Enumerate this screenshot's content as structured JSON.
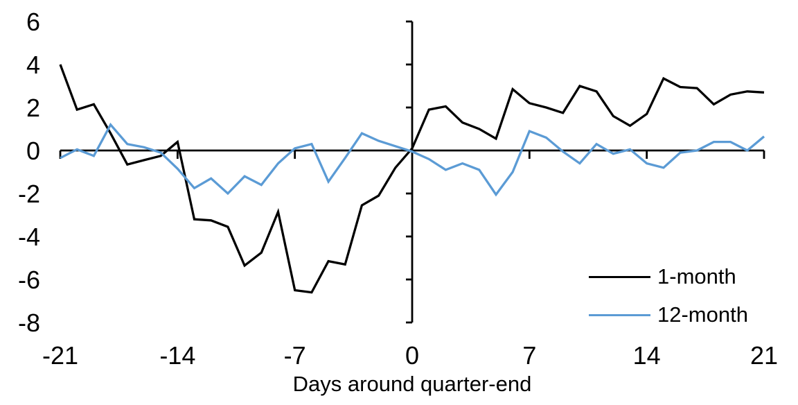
{
  "chart_data": {
    "type": "line",
    "title": "",
    "xlabel": "Days around quarter-end",
    "ylabel": "",
    "x": [
      -21,
      -20,
      -19,
      -18,
      -17,
      -16,
      -15,
      -14,
      -13,
      -12,
      -11,
      -10,
      -9,
      -8,
      -7,
      -6,
      -5,
      -4,
      -3,
      -2,
      -1,
      0,
      1,
      2,
      3,
      4,
      5,
      6,
      7,
      8,
      9,
      10,
      11,
      12,
      13,
      14,
      15,
      16,
      17,
      18,
      19,
      20,
      21
    ],
    "series": [
      {
        "name": "1-month",
        "color": "#000000",
        "values": [
          4.0,
          1.9,
          2.15,
          0.8,
          -0.65,
          -0.45,
          -0.25,
          0.4,
          -3.2,
          -3.25,
          -3.55,
          -5.35,
          -4.75,
          -2.85,
          -6.5,
          -6.6,
          -5.15,
          -5.3,
          -2.55,
          -2.1,
          -0.8,
          0.1,
          1.9,
          2.05,
          1.3,
          1.0,
          0.55,
          2.85,
          2.2,
          2.0,
          1.75,
          3.0,
          2.75,
          1.6,
          1.15,
          1.7,
          3.35,
          2.95,
          2.9,
          2.15,
          2.6,
          2.75,
          2.7
        ]
      },
      {
        "name": "12-month",
        "color": "#5B9BD5",
        "values": [
          -0.35,
          0.05,
          -0.25,
          1.2,
          0.3,
          0.15,
          -0.1,
          -0.85,
          -1.75,
          -1.3,
          -2.0,
          -1.2,
          -1.6,
          -0.6,
          0.1,
          0.3,
          -1.45,
          -0.35,
          0.8,
          0.45,
          0.2,
          -0.05,
          -0.4,
          -0.9,
          -0.6,
          -0.9,
          -2.05,
          -1.0,
          0.9,
          0.6,
          -0.05,
          -0.6,
          0.3,
          -0.15,
          0.05,
          -0.6,
          -0.8,
          -0.1,
          0.0,
          0.4,
          0.4,
          0.0,
          0.65
        ]
      }
    ],
    "x_ticks": [
      -21,
      -14,
      -7,
      0,
      7,
      14,
      21
    ],
    "y_ticks": [
      6,
      4,
      2,
      0,
      -2,
      -4,
      -6,
      -8
    ],
    "xlim": [
      -21,
      21
    ],
    "ylim": [
      -8,
      6
    ],
    "grid": false,
    "legend_position": "lower-right",
    "axis_color": "#000000",
    "background": "#FFFFFF"
  }
}
